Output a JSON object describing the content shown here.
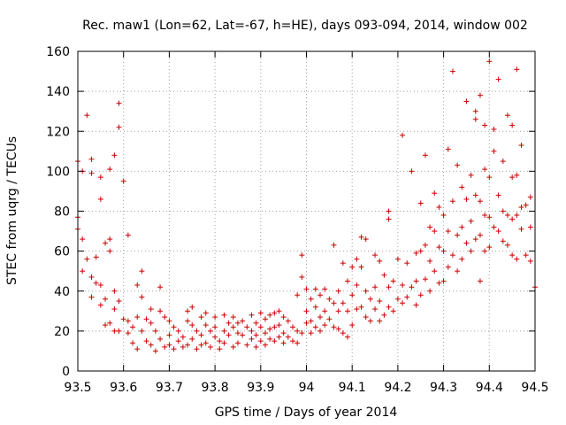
{
  "chart_data": {
    "type": "scatter",
    "title": "Rec. maw1 (Lon=62, Lat=-67, h=HE), days 093-094, 2014, window 002",
    "xlabel": "GPS time / Days of year 2014",
    "ylabel": "STEC from uqrg / TECUs",
    "xlim": [
      93.5,
      94.5
    ],
    "ylim": [
      0,
      160
    ],
    "x_ticks": [
      93.5,
      93.6,
      93.7,
      93.8,
      93.9,
      94,
      94.1,
      94.2,
      94.3,
      94.4,
      94.5
    ],
    "x_tick_labels": [
      "93.5",
      "93.6",
      "93.7",
      "93.8",
      "93.9",
      "94",
      "94.1",
      "94.2",
      "94.3",
      "94.4",
      "94.5"
    ],
    "y_ticks": [
      0,
      20,
      40,
      60,
      80,
      100,
      120,
      140,
      160
    ],
    "y_tick_labels": [
      "0",
      "20",
      "40",
      "60",
      "80",
      "100",
      "120",
      "140",
      "160"
    ],
    "grid": true,
    "marker": "+",
    "color": "#cc0000",
    "points": [
      [
        93.5,
        105
      ],
      [
        93.5,
        77
      ],
      [
        93.5,
        71
      ],
      [
        93.51,
        100
      ],
      [
        93.51,
        66
      ],
      [
        93.51,
        50
      ],
      [
        93.52,
        128
      ],
      [
        93.52,
        56
      ],
      [
        93.53,
        106
      ],
      [
        93.53,
        99
      ],
      [
        93.53,
        47
      ],
      [
        93.53,
        37
      ],
      [
        93.54,
        57
      ],
      [
        93.54,
        44
      ],
      [
        93.55,
        97
      ],
      [
        93.55,
        86
      ],
      [
        93.55,
        43
      ],
      [
        93.55,
        33
      ],
      [
        93.56,
        64
      ],
      [
        93.56,
        36
      ],
      [
        93.56,
        23
      ],
      [
        93.57,
        101
      ],
      [
        93.57,
        66
      ],
      [
        93.57,
        60
      ],
      [
        93.57,
        24
      ],
      [
        93.58,
        108
      ],
      [
        93.58,
        40
      ],
      [
        93.58,
        31
      ],
      [
        93.58,
        20
      ],
      [
        93.59,
        134
      ],
      [
        93.59,
        122
      ],
      [
        93.59,
        35
      ],
      [
        93.59,
        20
      ],
      [
        93.6,
        95
      ],
      [
        93.6,
        26
      ],
      [
        93.61,
        68
      ],
      [
        93.61,
        25
      ],
      [
        93.61,
        19
      ],
      [
        93.62,
        22
      ],
      [
        93.62,
        14
      ],
      [
        93.63,
        43
      ],
      [
        93.63,
        27
      ],
      [
        93.63,
        11
      ],
      [
        93.64,
        50
      ],
      [
        93.64,
        37
      ],
      [
        93.64,
        20
      ],
      [
        93.65,
        26
      ],
      [
        93.65,
        15
      ],
      [
        93.66,
        31
      ],
      [
        93.66,
        24
      ],
      [
        93.66,
        13
      ],
      [
        93.67,
        20
      ],
      [
        93.67,
        10
      ],
      [
        93.68,
        42
      ],
      [
        93.68,
        30
      ],
      [
        93.68,
        16
      ],
      [
        93.69,
        27
      ],
      [
        93.69,
        12
      ],
      [
        93.7,
        25
      ],
      [
        93.7,
        18
      ],
      [
        93.7,
        13
      ],
      [
        93.71,
        22
      ],
      [
        93.71,
        11
      ],
      [
        93.72,
        20
      ],
      [
        93.72,
        15
      ],
      [
        93.73,
        17
      ],
      [
        93.73,
        12
      ],
      [
        93.74,
        30
      ],
      [
        93.74,
        25
      ],
      [
        93.74,
        13
      ],
      [
        93.75,
        32
      ],
      [
        93.75,
        23
      ],
      [
        93.75,
        16
      ],
      [
        93.76,
        20
      ],
      [
        93.76,
        11
      ],
      [
        93.77,
        27
      ],
      [
        93.77,
        18
      ],
      [
        93.77,
        13
      ],
      [
        93.78,
        29
      ],
      [
        93.78,
        23
      ],
      [
        93.78,
        14
      ],
      [
        93.79,
        20
      ],
      [
        93.79,
        12
      ],
      [
        93.8,
        27
      ],
      [
        93.8,
        22
      ],
      [
        93.8,
        17
      ],
      [
        93.81,
        15
      ],
      [
        93.81,
        11
      ],
      [
        93.82,
        28
      ],
      [
        93.82,
        20
      ],
      [
        93.82,
        14
      ],
      [
        93.83,
        24
      ],
      [
        93.83,
        18
      ],
      [
        93.84,
        27
      ],
      [
        93.84,
        22
      ],
      [
        93.84,
        12
      ],
      [
        93.85,
        24
      ],
      [
        93.85,
        19
      ],
      [
        93.85,
        14
      ],
      [
        93.86,
        25
      ],
      [
        93.86,
        18
      ],
      [
        93.87,
        22
      ],
      [
        93.87,
        13
      ],
      [
        93.88,
        28
      ],
      [
        93.88,
        20
      ],
      [
        93.88,
        16
      ],
      [
        93.89,
        24
      ],
      [
        93.89,
        18
      ],
      [
        93.89,
        12
      ],
      [
        93.9,
        29
      ],
      [
        93.9,
        22
      ],
      [
        93.9,
        15
      ],
      [
        93.91,
        26
      ],
      [
        93.91,
        19
      ],
      [
        93.91,
        13
      ],
      [
        93.92,
        28
      ],
      [
        93.92,
        21
      ],
      [
        93.92,
        16
      ],
      [
        93.93,
        29
      ],
      [
        93.93,
        22
      ],
      [
        93.93,
        15
      ],
      [
        93.94,
        30
      ],
      [
        93.94,
        23
      ],
      [
        93.94,
        17
      ],
      [
        93.95,
        27
      ],
      [
        93.95,
        19
      ],
      [
        93.95,
        14
      ],
      [
        93.96,
        25
      ],
      [
        93.96,
        17
      ],
      [
        93.97,
        22
      ],
      [
        93.97,
        15
      ],
      [
        93.98,
        38
      ],
      [
        93.98,
        20
      ],
      [
        93.98,
        14
      ],
      [
        93.99,
        58
      ],
      [
        93.99,
        47
      ],
      [
        93.99,
        19
      ],
      [
        94,
        41
      ],
      [
        94,
        30
      ],
      [
        94,
        24
      ],
      [
        94.01,
        36
      ],
      [
        94.01,
        25
      ],
      [
        94.01,
        19
      ],
      [
        94.02,
        41
      ],
      [
        94.02,
        32
      ],
      [
        94.02,
        22
      ],
      [
        94.03,
        38
      ],
      [
        94.03,
        27
      ],
      [
        94.03,
        20
      ],
      [
        94.04,
        41
      ],
      [
        94.04,
        30
      ],
      [
        94.04,
        23
      ],
      [
        94.05,
        36
      ],
      [
        94.05,
        26
      ],
      [
        94.06,
        63
      ],
      [
        94.06,
        34
      ],
      [
        94.06,
        22
      ],
      [
        94.07,
        40
      ],
      [
        94.07,
        30
      ],
      [
        94.07,
        21
      ],
      [
        94.08,
        54
      ],
      [
        94.08,
        34
      ],
      [
        94.08,
        19
      ],
      [
        94.09,
        45
      ],
      [
        94.09,
        30
      ],
      [
        94.09,
        17
      ],
      [
        94.1,
        52
      ],
      [
        94.1,
        38
      ],
      [
        94.1,
        23
      ],
      [
        94.11,
        56
      ],
      [
        94.11,
        43
      ],
      [
        94.11,
        31
      ],
      [
        94.12,
        67
      ],
      [
        94.12,
        52
      ],
      [
        94.12,
        32
      ],
      [
        94.13,
        66
      ],
      [
        94.13,
        40
      ],
      [
        94.13,
        27
      ],
      [
        94.14,
        36
      ],
      [
        94.14,
        25
      ],
      [
        94.15,
        58
      ],
      [
        94.15,
        42
      ],
      [
        94.15,
        31
      ],
      [
        94.16,
        55
      ],
      [
        94.16,
        35
      ],
      [
        94.16,
        25
      ],
      [
        94.17,
        48
      ],
      [
        94.17,
        28
      ],
      [
        94.18,
        80
      ],
      [
        94.18,
        76
      ],
      [
        94.18,
        42
      ],
      [
        94.18,
        32
      ],
      [
        94.19,
        45
      ],
      [
        94.19,
        30
      ],
      [
        94.2,
        56
      ],
      [
        94.2,
        36
      ],
      [
        94.21,
        118
      ],
      [
        94.21,
        43
      ],
      [
        94.21,
        34
      ],
      [
        94.22,
        54
      ],
      [
        94.22,
        37
      ],
      [
        94.23,
        100
      ],
      [
        94.23,
        42
      ],
      [
        94.24,
        59
      ],
      [
        94.24,
        45
      ],
      [
        94.24,
        33
      ],
      [
        94.25,
        84
      ],
      [
        94.25,
        60
      ],
      [
        94.25,
        38
      ],
      [
        94.26,
        108
      ],
      [
        94.26,
        63
      ],
      [
        94.26,
        46
      ],
      [
        94.27,
        72
      ],
      [
        94.27,
        55
      ],
      [
        94.27,
        40
      ],
      [
        94.28,
        89
      ],
      [
        94.28,
        70
      ],
      [
        94.28,
        50
      ],
      [
        94.29,
        82
      ],
      [
        94.29,
        62
      ],
      [
        94.29,
        44
      ],
      [
        94.3,
        78
      ],
      [
        94.3,
        60
      ],
      [
        94.3,
        45
      ],
      [
        94.31,
        111
      ],
      [
        94.31,
        70
      ],
      [
        94.31,
        52
      ],
      [
        94.32,
        150
      ],
      [
        94.32,
        85
      ],
      [
        94.32,
        58
      ],
      [
        94.33,
        103
      ],
      [
        94.33,
        68
      ],
      [
        94.33,
        50
      ],
      [
        94.34,
        92
      ],
      [
        94.34,
        72
      ],
      [
        94.34,
        56
      ],
      [
        94.35,
        135
      ],
      [
        94.35,
        86
      ],
      [
        94.35,
        64
      ],
      [
        94.36,
        98
      ],
      [
        94.36,
        75
      ],
      [
        94.36,
        60
      ],
      [
        94.37,
        130
      ],
      [
        94.37,
        126
      ],
      [
        94.37,
        88
      ],
      [
        94.37,
        66
      ],
      [
        94.38,
        138
      ],
      [
        94.38,
        85
      ],
      [
        94.38,
        68
      ],
      [
        94.38,
        45
      ],
      [
        94.39,
        123
      ],
      [
        94.39,
        101
      ],
      [
        94.39,
        78
      ],
      [
        94.39,
        60
      ],
      [
        94.4,
        155
      ],
      [
        94.4,
        97
      ],
      [
        94.4,
        77
      ],
      [
        94.4,
        62
      ],
      [
        94.41,
        121
      ],
      [
        94.41,
        110
      ],
      [
        94.41,
        72
      ],
      [
        94.42,
        146
      ],
      [
        94.42,
        88
      ],
      [
        94.42,
        70
      ],
      [
        94.43,
        105
      ],
      [
        94.43,
        80
      ],
      [
        94.43,
        65
      ],
      [
        94.44,
        128
      ],
      [
        94.44,
        78
      ],
      [
        94.44,
        63
      ],
      [
        94.45,
        123
      ],
      [
        94.45,
        97
      ],
      [
        94.45,
        76
      ],
      [
        94.45,
        58
      ],
      [
        94.46,
        151
      ],
      [
        94.46,
        98
      ],
      [
        94.46,
        78
      ],
      [
        94.46,
        56
      ],
      [
        94.47,
        113
      ],
      [
        94.47,
        82
      ],
      [
        94.47,
        71
      ],
      [
        94.48,
        83
      ],
      [
        94.48,
        58
      ],
      [
        94.49,
        87
      ],
      [
        94.49,
        72
      ],
      [
        94.49,
        55
      ],
      [
        94.5,
        42
      ]
    ]
  }
}
